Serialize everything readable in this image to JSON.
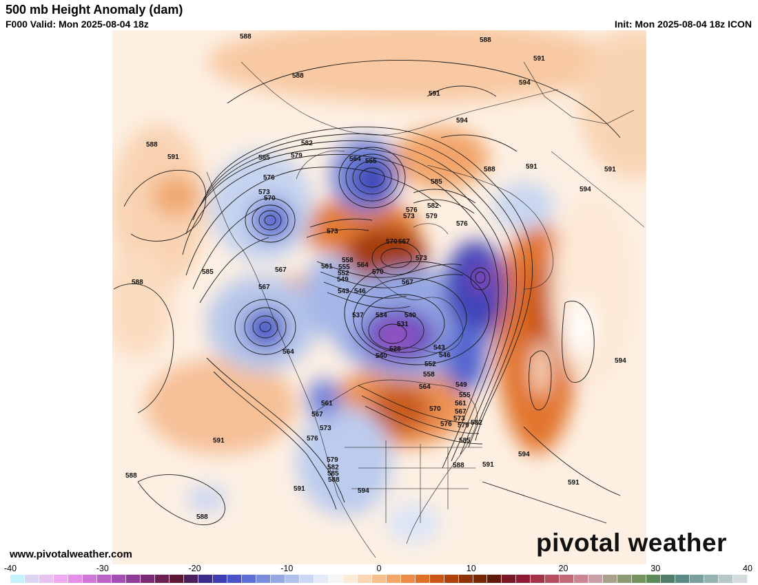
{
  "header": {
    "title": "500 mb Height Anomaly (dam)",
    "valid": "F000 Valid: Mon 2025-08-04 18z",
    "init": "Init: Mon 2025-08-04 18z ICON"
  },
  "footer": {
    "website": "www.pivotalweather.com",
    "brand": "pivotal weather"
  },
  "colorbar": {
    "ticks": [
      "-40",
      "-30",
      "-20",
      "-10",
      "0",
      "10",
      "20",
      "30",
      "40"
    ],
    "colors": [
      "#c6f3fb",
      "#ddd6f3",
      "#e9c3ef",
      "#efaaf0",
      "#e58fe8",
      "#d277da",
      "#bd63c8",
      "#a34fb6",
      "#8e3c97",
      "#7b2b73",
      "#6a2050",
      "#5d1735",
      "#4b1f5c",
      "#3b2c8c",
      "#3d3cb3",
      "#4a53c9",
      "#5f6fd5",
      "#7a8ddd",
      "#95a8e4",
      "#b0c1ec",
      "#cbd8f3",
      "#e3ebf8",
      "#f5f5f5",
      "#fdebd9",
      "#fbd6b4",
      "#f8bf8e",
      "#f3a66a",
      "#eb8b47",
      "#de7028",
      "#c95716",
      "#ad420b",
      "#8e3207",
      "#742605",
      "#611b0d",
      "#7a1725",
      "#8e1b33",
      "#a33448",
      "#b34f60",
      "#c06a78",
      "#ca8793",
      "#c9a0a8",
      "#a8a08a",
      "#8c9a73",
      "#76935f",
      "#5e8a5a",
      "#4f7d6a",
      "#5a8a83",
      "#79a09c",
      "#97b3b1",
      "#b6c8c7",
      "#d3dcdc"
    ]
  },
  "map": {
    "contour_labels": [
      {
        "text": "588"
      },
      {
        "text": "591"
      },
      {
        "text": "588"
      },
      {
        "text": "591"
      },
      {
        "text": "594"
      },
      {
        "text": "588"
      },
      {
        "text": "591"
      },
      {
        "text": "588"
      },
      {
        "text": "594"
      },
      {
        "text": "582"
      },
      {
        "text": "579"
      },
      {
        "text": "585"
      },
      {
        "text": "576"
      },
      {
        "text": "573"
      },
      {
        "text": "570"
      },
      {
        "text": "564"
      },
      {
        "text": "555"
      },
      {
        "text": "588"
      },
      {
        "text": "591"
      },
      {
        "text": "585"
      },
      {
        "text": "582"
      },
      {
        "text": "576"
      },
      {
        "text": "573"
      },
      {
        "text": "579"
      },
      {
        "text": "576"
      },
      {
        "text": "573"
      },
      {
        "text": "570"
      },
      {
        "text": "567"
      },
      {
        "text": "573"
      },
      {
        "text": "585"
      },
      {
        "text": "567"
      },
      {
        "text": "561"
      },
      {
        "text": "558"
      },
      {
        "text": "555"
      },
      {
        "text": "552"
      },
      {
        "text": "549"
      },
      {
        "text": "564"
      },
      {
        "text": "570"
      },
      {
        "text": "567"
      },
      {
        "text": "543"
      },
      {
        "text": "546"
      },
      {
        "text": "567"
      },
      {
        "text": "588"
      },
      {
        "text": "537"
      },
      {
        "text": "534"
      },
      {
        "text": "540"
      },
      {
        "text": "531"
      },
      {
        "text": "528"
      },
      {
        "text": "543"
      },
      {
        "text": "546"
      },
      {
        "text": "540"
      },
      {
        "text": "552"
      },
      {
        "text": "558"
      },
      {
        "text": "564"
      },
      {
        "text": "564"
      },
      {
        "text": "549"
      },
      {
        "text": "555"
      },
      {
        "text": "561"
      },
      {
        "text": "567"
      },
      {
        "text": "570"
      },
      {
        "text": "573"
      },
      {
        "text": "576"
      },
      {
        "text": "579"
      },
      {
        "text": "582"
      },
      {
        "text": "585"
      },
      {
        "text": "561"
      },
      {
        "text": "567"
      },
      {
        "text": "573"
      },
      {
        "text": "576"
      },
      {
        "text": "579"
      },
      {
        "text": "582"
      },
      {
        "text": "585"
      },
      {
        "text": "588"
      },
      {
        "text": "588"
      },
      {
        "text": "591"
      },
      {
        "text": "594"
      },
      {
        "text": "591"
      },
      {
        "text": "594"
      },
      {
        "text": "591"
      },
      {
        "text": "588"
      },
      {
        "text": "591"
      },
      {
        "text": "588"
      },
      {
        "text": "594"
      },
      {
        "text": "591"
      },
      {
        "text": "594"
      }
    ]
  }
}
